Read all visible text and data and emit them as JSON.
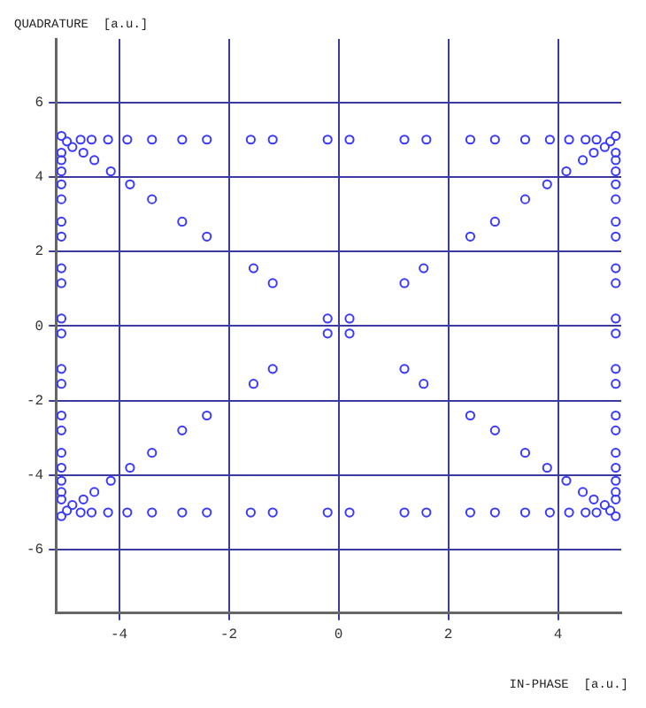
{
  "chart_data": {
    "type": "scatter",
    "xlabel": "IN-PHASE  [a.u.]",
    "ylabel": "QUADRATURE  [a.u.]",
    "xlim": [
      -5.15,
      5.15
    ],
    "ylim": [
      -7.7,
      7.7
    ],
    "xticks": [
      -4,
      -2,
      0,
      2,
      4
    ],
    "yticks": [
      -6,
      -4,
      -2,
      0,
      2,
      4,
      6
    ],
    "grid": true,
    "legend": false,
    "marker": "circle",
    "series": [
      {
        "color": "#3a3aff",
        "x": [
          0.2,
          1.2,
          1.6,
          2.4,
          2.85,
          3.4,
          3.85,
          4.2,
          4.5,
          4.7,
          5.05,
          5.05,
          5.05,
          5.05,
          5.05,
          5.05,
          5.05,
          5.05,
          5.05,
          5.05,
          5.05,
          0.2,
          1.2,
          1.55,
          2.4,
          2.85,
          3.4,
          3.8,
          4.15,
          4.45,
          4.65,
          4.85,
          4.95
        ],
        "values": [
          5,
          5,
          5,
          5,
          5,
          5,
          5,
          5,
          5,
          5,
          0.2,
          1.15,
          1.55,
          2.4,
          2.8,
          3.4,
          3.8,
          4.15,
          4.45,
          4.65,
          5.1,
          0.2,
          1.15,
          1.55,
          2.4,
          2.8,
          3.4,
          3.8,
          4.15,
          4.45,
          4.65,
          4.8,
          4.95
        ]
      },
      {
        "color": "#3a3aff",
        "x": [
          -0.2,
          -1.2,
          -1.6,
          -2.4,
          -2.85,
          -3.4,
          -3.85,
          -4.2,
          -4.5,
          -4.7,
          -5.05,
          -5.05,
          -5.05,
          -5.05,
          -5.05,
          -5.05,
          -5.05,
          -5.05,
          -5.05,
          -5.05,
          -5.05,
          -0.2,
          -1.2,
          -1.55,
          -2.4,
          -2.85,
          -3.4,
          -3.8,
          -4.15,
          -4.45,
          -4.65,
          -4.85,
          -4.95
        ],
        "values": [
          5,
          5,
          5,
          5,
          5,
          5,
          5,
          5,
          5,
          5,
          0.2,
          1.15,
          1.55,
          2.4,
          2.8,
          3.4,
          3.8,
          4.15,
          4.45,
          4.65,
          5.1,
          0.2,
          1.15,
          1.55,
          2.4,
          2.8,
          3.4,
          3.8,
          4.15,
          4.45,
          4.65,
          4.8,
          4.95
        ]
      },
      {
        "color": "#3a3aff",
        "x": [
          0.2,
          1.2,
          1.6,
          2.4,
          2.85,
          3.4,
          3.85,
          4.2,
          4.5,
          4.7,
          5.05,
          5.05,
          5.05,
          5.05,
          5.05,
          5.05,
          5.05,
          5.05,
          5.05,
          5.05,
          5.05,
          0.2,
          1.2,
          1.55,
          2.4,
          2.85,
          3.4,
          3.8,
          4.15,
          4.45,
          4.65,
          4.85,
          4.95
        ],
        "values": [
          -5,
          -5,
          -5,
          -5,
          -5,
          -5,
          -5,
          -5,
          -5,
          -5,
          -0.2,
          -1.15,
          -1.55,
          -2.4,
          -2.8,
          -3.4,
          -3.8,
          -4.15,
          -4.45,
          -4.65,
          -5.1,
          -0.2,
          -1.15,
          -1.55,
          -2.4,
          -2.8,
          -3.4,
          -3.8,
          -4.15,
          -4.45,
          -4.65,
          -4.8,
          -4.95
        ]
      },
      {
        "color": "#3a3aff",
        "x": [
          -0.2,
          -1.2,
          -1.6,
          -2.4,
          -2.85,
          -3.4,
          -3.85,
          -4.2,
          -4.5,
          -4.7,
          -5.05,
          -5.05,
          -5.05,
          -5.05,
          -5.05,
          -5.05,
          -5.05,
          -5.05,
          -5.05,
          -5.05,
          -5.05,
          -0.2,
          -1.2,
          -1.55,
          -2.4,
          -2.85,
          -3.4,
          -3.8,
          -4.15,
          -4.45,
          -4.65,
          -4.85,
          -4.95
        ],
        "values": [
          -5,
          -5,
          -5,
          -5,
          -5,
          -5,
          -5,
          -5,
          -5,
          -5,
          -0.2,
          -1.15,
          -1.55,
          -2.4,
          -2.8,
          -3.4,
          -3.8,
          -4.15,
          -4.45,
          -4.65,
          -5.1,
          -0.2,
          -1.15,
          -1.55,
          -2.4,
          -2.8,
          -3.4,
          -3.8,
          -4.15,
          -4.45,
          -4.65,
          -4.8,
          -4.95
        ]
      }
    ]
  }
}
